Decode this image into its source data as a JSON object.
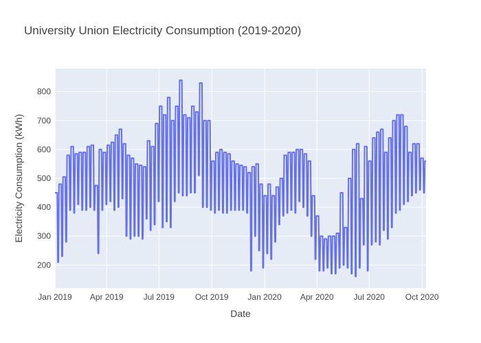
{
  "chart_data": {
    "type": "line",
    "title": "University Union Electricity Consumption (2019-2020)",
    "xlabel": "Date",
    "ylabel": "Electricity Consumption (kWh)",
    "xlim": [
      "2019-01-01",
      "2020-10-08"
    ],
    "ylim": [
      120,
      880
    ],
    "x_ticks": [
      {
        "date": "2019-01-01",
        "label": "Jan 2019"
      },
      {
        "date": "2019-04-01",
        "label": "Apr 2019"
      },
      {
        "date": "2019-07-01",
        "label": "Jul 2019"
      },
      {
        "date": "2019-10-01",
        "label": "Oct 2019"
      },
      {
        "date": "2020-01-01",
        "label": "Jan 2020"
      },
      {
        "date": "2020-04-01",
        "label": "Apr 2020"
      },
      {
        "date": "2020-07-01",
        "label": "Jul 2020"
      },
      {
        "date": "2020-10-01",
        "label": "Oct 2020"
      }
    ],
    "y_ticks": [
      200,
      300,
      400,
      500,
      600,
      700,
      800
    ],
    "grid": true,
    "line_color": "#636efa",
    "plot_background": "#e5ecf6",
    "series": [
      {
        "frequency": "weekly",
        "x": [
          "2019-01-01",
          "2019-01-08",
          "2019-01-15",
          "2019-01-22",
          "2019-01-29",
          "2019-02-05",
          "2019-02-12",
          "2019-02-19",
          "2019-02-26",
          "2019-03-05",
          "2019-03-12",
          "2019-03-19",
          "2019-03-26",
          "2019-04-02",
          "2019-04-09",
          "2019-04-16",
          "2019-04-23",
          "2019-04-30",
          "2019-05-07",
          "2019-05-14",
          "2019-05-21",
          "2019-05-28",
          "2019-06-04",
          "2019-06-11",
          "2019-06-18",
          "2019-06-25",
          "2019-07-02",
          "2019-07-09",
          "2019-07-16",
          "2019-07-23",
          "2019-07-30",
          "2019-08-06",
          "2019-08-13",
          "2019-08-20",
          "2019-08-27",
          "2019-09-03",
          "2019-09-10",
          "2019-09-17",
          "2019-09-24",
          "2019-10-01",
          "2019-10-08",
          "2019-10-15",
          "2019-10-22",
          "2019-10-29",
          "2019-11-05",
          "2019-11-12",
          "2019-11-19",
          "2019-11-26",
          "2019-12-03",
          "2019-12-10",
          "2019-12-17",
          "2019-12-24",
          "2019-12-31",
          "2020-01-07",
          "2020-01-14",
          "2020-01-21",
          "2020-01-28",
          "2020-02-04",
          "2020-02-11",
          "2020-02-18",
          "2020-02-25",
          "2020-03-03",
          "2020-03-10",
          "2020-03-17",
          "2020-03-24",
          "2020-03-31",
          "2020-04-07",
          "2020-04-14",
          "2020-04-21",
          "2020-04-28",
          "2020-05-05",
          "2020-05-12",
          "2020-05-19",
          "2020-05-26",
          "2020-06-02",
          "2020-06-09",
          "2020-06-16",
          "2020-06-23",
          "2020-06-30",
          "2020-07-07",
          "2020-07-14",
          "2020-07-21",
          "2020-07-28",
          "2020-08-04",
          "2020-08-11",
          "2020-08-18",
          "2020-08-25",
          "2020-09-01",
          "2020-09-08",
          "2020-09-15",
          "2020-09-22",
          "2020-09-29",
          "2020-10-06"
        ],
        "weekday_high": [
          450,
          480,
          505,
          580,
          610,
          585,
          590,
          590,
          610,
          615,
          475,
          600,
          590,
          615,
          625,
          650,
          670,
          620,
          580,
          570,
          550,
          545,
          540,
          630,
          610,
          690,
          750,
          720,
          780,
          700,
          750,
          840,
          720,
          710,
          750,
          730,
          830,
          700,
          700,
          560,
          590,
          600,
          590,
          585,
          560,
          550,
          545,
          540,
          520,
          540,
          550,
          480,
          440,
          480,
          440,
          470,
          500,
          580,
          590,
          590,
          600,
          600,
          585,
          560,
          440,
          370,
          300,
          290,
          300,
          300,
          310,
          450,
          330,
          500,
          600,
          620,
          430,
          610,
          560,
          640,
          660,
          670,
          590,
          640,
          700,
          720,
          720,
          680,
          590,
          620,
          620,
          570,
          560
        ],
        "weekend_low": [
          210,
          230,
          280,
          390,
          380,
          410,
          390,
          390,
          400,
          390,
          240,
          390,
          410,
          420,
          390,
          400,
          430,
          300,
          290,
          300,
          300,
          290,
          360,
          320,
          340,
          420,
          330,
          350,
          330,
          420,
          450,
          440,
          440,
          450,
          450,
          510,
          400,
          400,
          390,
          380,
          390,
          380,
          380,
          390,
          390,
          390,
          390,
          380,
          180,
          300,
          250,
          190,
          240,
          220,
          280,
          340,
          370,
          380,
          390,
          380,
          420,
          400,
          370,
          300,
          220,
          180,
          180,
          190,
          170,
          170,
          190,
          200,
          190,
          170,
          160,
          190,
          270,
          180,
          270,
          280,
          270,
          320,
          290,
          330,
          380,
          390,
          410,
          420,
          440,
          450,
          460,
          450,
          440
        ]
      }
    ]
  }
}
